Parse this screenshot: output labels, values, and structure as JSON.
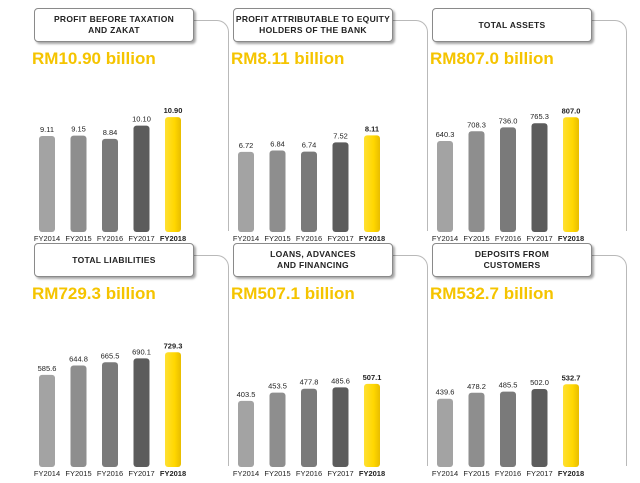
{
  "chart_data": [
    {
      "type": "bar",
      "title": "PROFIT BEFORE TAXATION\nAND ZAKAT",
      "headline": "RM10.90 billion",
      "categories": [
        "FY2014",
        "FY2015",
        "FY2016",
        "FY2017",
        "FY2018"
      ],
      "values": [
        9.11,
        9.15,
        8.84,
        10.1,
        10.9
      ],
      "value_labels": [
        "9.11",
        "9.15",
        "8.84",
        "10.10",
        "10.90"
      ],
      "ylim": [
        0,
        11.2
      ]
    },
    {
      "type": "bar",
      "title": "PROFIT ATTRIBUTABLE TO EQUITY\nHOLDERS OF THE BANK",
      "headline": "RM8.11 billion",
      "categories": [
        "FY2014",
        "FY2015",
        "FY2016",
        "FY2017",
        "FY2018"
      ],
      "values": [
        6.72,
        6.84,
        6.74,
        7.52,
        8.11
      ],
      "value_labels": [
        "6.72",
        "6.84",
        "6.74",
        "7.52",
        "8.11"
      ],
      "ylim": [
        0,
        9.9
      ]
    },
    {
      "type": "bar",
      "title": "TOTAL ASSETS",
      "headline": "RM807.0 billion",
      "categories": [
        "FY2014",
        "FY2015",
        "FY2016",
        "FY2017",
        "FY2018"
      ],
      "values": [
        640.3,
        708.3,
        736.0,
        765.3,
        807.0
      ],
      "value_labels": [
        "640.3",
        "708.3",
        "736.0",
        "765.3",
        "807.0"
      ],
      "ylim": [
        0,
        830
      ]
    },
    {
      "type": "bar",
      "title": "TOTAL LIABILITIES",
      "headline": "RM729.3 billion",
      "categories": [
        "FY2014",
        "FY2015",
        "FY2016",
        "FY2017",
        "FY2018"
      ],
      "values": [
        585.6,
        644.8,
        665.5,
        690.1,
        729.3
      ],
      "value_labels": [
        "585.6",
        "644.8",
        "665.5",
        "690.1",
        "729.3"
      ],
      "ylim": [
        0,
        750
      ]
    },
    {
      "type": "bar",
      "title": "LOANS, ADVANCES\nAND FINANCING",
      "headline": "RM507.1 billion",
      "categories": [
        "FY2014",
        "FY2015",
        "FY2016",
        "FY2017",
        "FY2018"
      ],
      "values": [
        403.5,
        453.5,
        477.8,
        485.6,
        507.1
      ],
      "value_labels": [
        "403.5",
        "453.5",
        "477.8",
        "485.6",
        "507.1"
      ],
      "ylim": [
        0,
        720
      ]
    },
    {
      "type": "bar",
      "title": "DEPOSITS FROM\nCUSTOMERS",
      "headline": "RM532.7 billion",
      "categories": [
        "FY2014",
        "FY2015",
        "FY2016",
        "FY2017",
        "FY2018"
      ],
      "values": [
        439.6,
        478.2,
        485.5,
        502.0,
        532.7
      ],
      "value_labels": [
        "439.6",
        "478.2",
        "485.5",
        "502.0",
        "532.7"
      ],
      "ylim": [
        0,
        760
      ]
    }
  ],
  "colors": {
    "bar_grey": [
      "#a3a3a3",
      "#8e8e8e",
      "#7a7a7a",
      "#5c5c5c"
    ],
    "bar_highlight": "#ffd700",
    "headline": "#f5c400"
  }
}
